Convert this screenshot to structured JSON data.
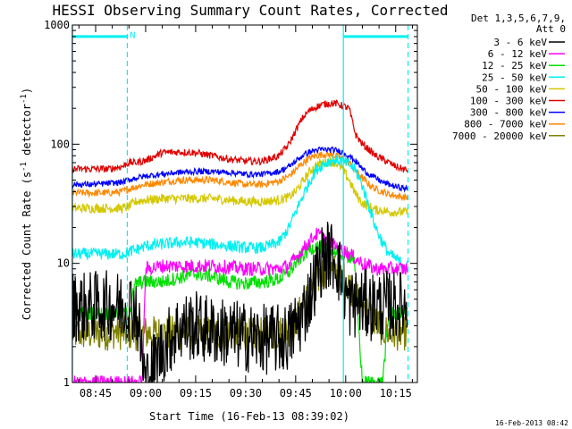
{
  "chart_data": {
    "type": "line",
    "title": "HESSI Observing Summary Count Rates, Corrected",
    "xlabel": "Start Time (16-Feb-13 08:39:02)",
    "ylabel_main": "Corrected Count Rate (s",
    "ylabel_sup1": "-1",
    "ylabel_mid": " detector",
    "ylabel_sup2": "-1",
    "ylabel_end": ")",
    "y_scale": "log",
    "ylim": [
      1,
      1000
    ],
    "xlim": [
      -6.9667,
      96.5
    ],
    "x_unit": "minutes after 08:45",
    "x_ticks": [
      {
        "label": "08:45",
        "value": 0
      },
      {
        "label": "09:00",
        "value": 15
      },
      {
        "label": "09:15",
        "value": 30
      },
      {
        "label": "09:30",
        "value": 45
      },
      {
        "label": "09:45",
        "value": 60
      },
      {
        "label": "10:00",
        "value": 75
      },
      {
        "label": "10:15",
        "value": 90
      }
    ],
    "y_ticks": [
      {
        "label": "1",
        "value": 1
      },
      {
        "label": "10",
        "value": 10
      },
      {
        "label": "100",
        "value": 100
      },
      {
        "label": "1000",
        "value": 1000
      }
    ],
    "legend_header": [
      "Det 1,3,5,6,7,9,",
      "Att 0"
    ],
    "legend_position": "right",
    "series": [
      {
        "name": "3 - 6 keV",
        "color": "#000000",
        "x": [
          -7,
          -4,
          0,
          6,
          10,
          12,
          15,
          20,
          25,
          30,
          35,
          40,
          45,
          50,
          55,
          58,
          60,
          62,
          64,
          66,
          68,
          70,
          72,
          74,
          76,
          78,
          80,
          82,
          84,
          86,
          88,
          90,
          92,
          93.5
        ],
        "y": [
          4.4,
          4.3,
          4.4,
          4.4,
          4.4,
          4.4,
          1.0,
          1.9,
          2.9,
          3.0,
          2.7,
          2.6,
          2.4,
          2.3,
          2.3,
          2.4,
          3.0,
          3.6,
          5.2,
          7.5,
          11,
          12,
          11,
          7.0,
          4.6,
          4.6,
          4.6,
          4.4,
          4.4,
          4.4,
          4.4,
          4.4,
          4.4,
          4.4
        ],
        "noise": 0.3
      },
      {
        "name": "6 - 12 keV",
        "color": "#ff00ff",
        "x": [
          -7,
          -4,
          0,
          4,
          6,
          8,
          10,
          12,
          14,
          15,
          20,
          25,
          30,
          35,
          40,
          45,
          50,
          55,
          58,
          60,
          62,
          64,
          66,
          68,
          70,
          72,
          74,
          76,
          78,
          80,
          82,
          84,
          86,
          88,
          90,
          92,
          93.5
        ],
        "y": [
          1.0,
          1.0,
          1.0,
          1.0,
          1.0,
          1.0,
          1.0,
          1.0,
          1.0,
          9,
          9.5,
          9.5,
          9.5,
          9.5,
          9.3,
          9,
          9,
          9,
          9.6,
          11,
          13,
          15,
          17.5,
          17,
          15,
          14,
          13,
          12,
          11,
          10,
          9.5,
          9,
          9,
          9,
          9,
          9,
          9
        ],
        "noise": 0.06
      },
      {
        "name": "12 - 25 keV",
        "color": "#00e000",
        "x": [
          -7,
          -4,
          0,
          4,
          8,
          10,
          12,
          15,
          20,
          25,
          30,
          35,
          40,
          45,
          50,
          55,
          58,
          60,
          62,
          64,
          66,
          68,
          70,
          72,
          74,
          76,
          77.5,
          80,
          82,
          84,
          86,
          88,
          90,
          92,
          93.5
        ],
        "y": [
          3.8,
          3.8,
          3.8,
          3.8,
          3.8,
          3.8,
          6.8,
          7.0,
          7.0,
          7.6,
          8.2,
          7.8,
          7.0,
          6.8,
          7.0,
          7.4,
          8.4,
          10.0,
          11.5,
          13.0,
          14.0,
          13.5,
          13.0,
          12.5,
          12.0,
          11.5,
          11.0,
          1.0,
          1.0,
          1.0,
          1.0,
          3.8,
          3.8,
          3.8,
          3.8
        ],
        "noise": 0.06
      },
      {
        "name": "25 - 50 keV",
        "color": "#00f0f0",
        "x": [
          -7,
          -4,
          0,
          4,
          8,
          10,
          12,
          15,
          20,
          25,
          30,
          35,
          40,
          45,
          50,
          55,
          58,
          60,
          62,
          64,
          66,
          68,
          70,
          72,
          74,
          76,
          78,
          80,
          82,
          84,
          86,
          88,
          90,
          92,
          93.5
        ],
        "y": [
          12,
          12,
          12,
          12,
          12,
          12.5,
          13,
          14,
          14.5,
          15,
          15,
          14.5,
          14,
          13.5,
          13.5,
          15,
          20,
          27,
          36,
          48,
          60,
          68,
          72,
          74,
          72,
          68,
          60,
          45,
          30,
          20,
          15,
          12,
          11,
          10,
          9.5
        ],
        "noise": 0.05
      },
      {
        "name": "50 - 100 keV",
        "color": "#d4c800",
        "x": [
          -7,
          -4,
          0,
          4,
          8,
          10,
          12,
          15,
          20,
          25,
          30,
          35,
          40,
          45,
          50,
          55,
          58,
          60,
          62,
          64,
          66,
          68,
          70,
          72,
          74,
          76,
          78,
          80,
          82,
          84,
          86,
          88,
          90,
          92,
          93.5
        ],
        "y": [
          29,
          29,
          29,
          29,
          29,
          30,
          33,
          34,
          35,
          35,
          35,
          35,
          34,
          33,
          33,
          34,
          36,
          40,
          48,
          58,
          66,
          70,
          72,
          70,
          62,
          50,
          38,
          32,
          30,
          28,
          28,
          27,
          27,
          27,
          27
        ],
        "noise": 0.04
      },
      {
        "name": "100 - 300 keV",
        "color": "#e00000",
        "x": [
          -7,
          -4,
          0,
          4,
          8,
          10,
          12,
          15,
          20,
          25,
          30,
          35,
          40,
          45,
          50,
          55,
          58,
          60,
          62,
          64,
          66,
          68,
          70,
          72,
          74,
          76,
          78,
          80,
          82,
          84,
          86,
          88,
          90,
          92,
          93.5
        ],
        "y": [
          62,
          62,
          62,
          62,
          65,
          70,
          70,
          73,
          85,
          86,
          85,
          80,
          75,
          72,
          72,
          80,
          100,
          130,
          165,
          190,
          205,
          215,
          220,
          220,
          210,
          200,
          120,
          100,
          90,
          80,
          75,
          70,
          65,
          62,
          60
        ],
        "noise": 0.03
      },
      {
        "name": "300 - 800 keV",
        "color": "#0000ff",
        "x": [
          -7,
          -4,
          0,
          4,
          8,
          10,
          12,
          15,
          20,
          25,
          30,
          35,
          40,
          45,
          50,
          55,
          58,
          60,
          62,
          64,
          66,
          68,
          70,
          72,
          74,
          76,
          78,
          80,
          82,
          84,
          86,
          88,
          90,
          92,
          93.5
        ],
        "y": [
          46,
          46,
          46,
          47,
          48,
          50,
          52,
          54,
          56,
          58,
          59,
          59,
          58,
          56,
          56,
          59,
          65,
          72,
          80,
          86,
          89,
          90,
          90,
          89,
          86,
          80,
          72,
          62,
          56,
          52,
          48,
          46,
          44,
          43,
          42
        ],
        "noise": 0.025
      },
      {
        "name": "800 - 7000 keV",
        "color": "#ff8800",
        "x": [
          -7,
          -4,
          0,
          4,
          8,
          10,
          12,
          15,
          20,
          25,
          30,
          35,
          40,
          45,
          50,
          55,
          58,
          60,
          62,
          64,
          66,
          68,
          70,
          72,
          74,
          76,
          78,
          80,
          82,
          84,
          86,
          88,
          90,
          92,
          93.5
        ],
        "y": [
          39,
          39,
          39,
          39,
          40,
          42,
          44,
          46,
          48,
          50,
          50,
          50,
          48,
          46,
          46,
          49,
          54,
          61,
          69,
          76,
          80,
          82,
          82,
          80,
          76,
          70,
          60,
          52,
          46,
          42,
          40,
          38,
          37,
          36,
          36
        ],
        "noise": 0.03
      },
      {
        "name": "7000 - 20000 keV",
        "color": "#808000",
        "x": [
          -7,
          -4,
          0,
          4,
          6,
          8,
          10,
          12,
          15,
          20,
          25,
          30,
          35,
          40,
          45,
          50,
          55,
          58,
          60,
          62,
          64,
          66,
          68,
          70,
          72,
          74,
          76,
          78,
          80,
          82,
          84,
          86,
          88,
          90,
          92,
          93.5
        ],
        "y": [
          2.6,
          2.6,
          2.6,
          2.6,
          2.7,
          2.6,
          2.6,
          2.6,
          2.6,
          2.6,
          2.6,
          2.6,
          2.6,
          2.6,
          2.5,
          2.5,
          2.6,
          2.8,
          3.3,
          4.2,
          5.5,
          7.0,
          8.5,
          9.0,
          8.5,
          7.5,
          6.5,
          5.5,
          4.5,
          3.8,
          3.2,
          2.8,
          2.6,
          2.6,
          2.6,
          2.6
        ],
        "noise": 0.15
      }
    ],
    "annotations": {
      "vertical_lines": [
        {
          "x": -7,
          "style": "solid",
          "color": "#00f0f0"
        },
        {
          "x": 9.5,
          "style": "dashed",
          "color": "#00f0f0"
        },
        {
          "x": 74.3,
          "style": "solid",
          "color": "#00f0f0"
        },
        {
          "x": 93.7,
          "style": "dashed",
          "color": "#00f0f0"
        }
      ],
      "top_bars": [
        {
          "x0": -7,
          "x1": 9.5,
          "y": 800,
          "color": "#00f0f0"
        },
        {
          "x0": 74.3,
          "x1": 93.7,
          "y": 800,
          "color": "#00f0f0"
        }
      ],
      "label_N": {
        "text": "N",
        "x": 10.3,
        "y": 850
      }
    },
    "timestamp": "16-Feb-2013 08:42"
  }
}
